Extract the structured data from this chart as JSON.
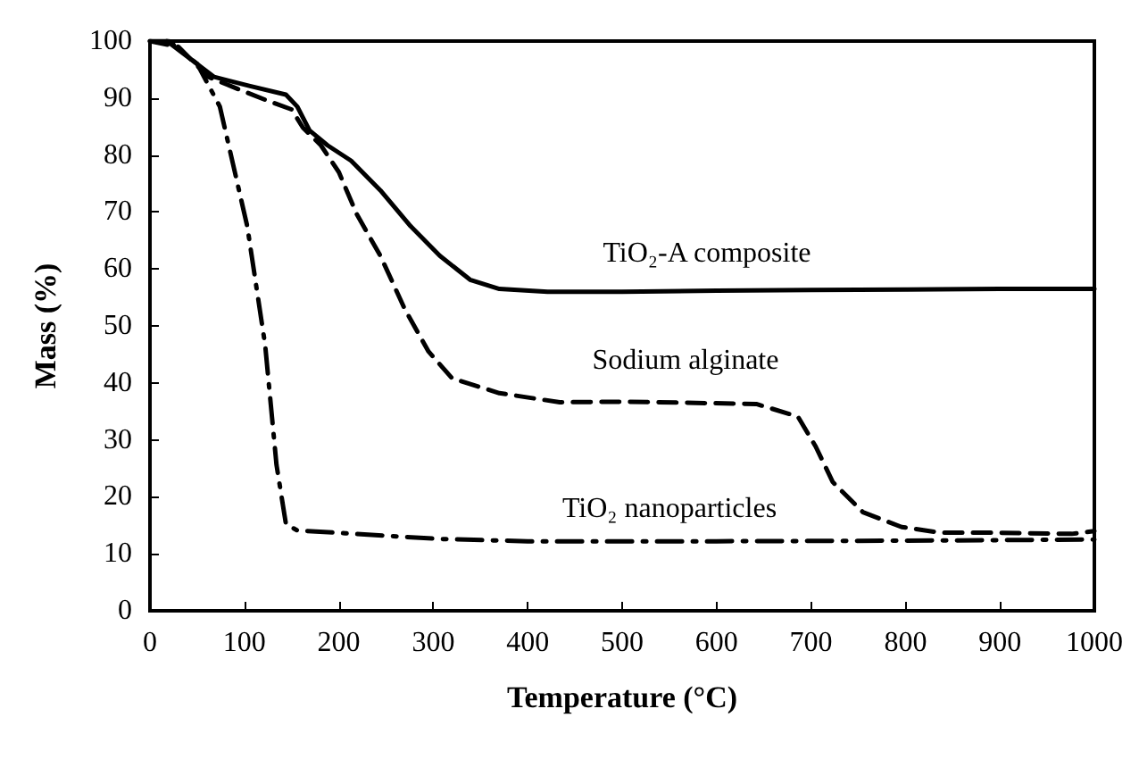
{
  "chart_data": {
    "type": "line",
    "xlabel": "Temperature (°C)",
    "ylabel": "Mass (%)",
    "xlim": [
      0,
      1000
    ],
    "xticks": [
      0,
      100,
      200,
      300,
      400,
      500,
      600,
      700,
      800,
      900,
      1000
    ],
    "ylim": [
      0,
      100
    ],
    "yticks": [
      0,
      10,
      20,
      30,
      40,
      50,
      60,
      70,
      80,
      90,
      100
    ],
    "grid": false,
    "marker": "none",
    "series": [
      {
        "name": "TiO₂-A composite",
        "color": "#000000",
        "line_style": "solid",
        "x": [
          18,
          68,
          106,
          144,
          156,
          169,
          188,
          213,
          244,
          276,
          307,
          339,
          370,
          421,
          500,
          600,
          700,
          800,
          900,
          1000
        ],
        "values": [
          100,
          93.7,
          92.1,
          90.6,
          88.5,
          84.3,
          81.7,
          79,
          73.8,
          67.5,
          62.3,
          58.1,
          56.5,
          56,
          56,
          56.2,
          56.3,
          56.4,
          56.5,
          56.5
        ]
      },
      {
        "name": "Sodium alginate",
        "color": "#000000",
        "line_style": "dashed",
        "x": [
          0,
          30,
          62,
          93,
          125,
          150,
          162,
          181,
          200,
          219,
          244,
          270,
          295,
          320,
          370,
          434,
          503,
          642,
          686,
          705,
          723,
          755,
          796,
          837,
          894,
          976,
          1000
        ],
        "values": [
          100,
          99,
          93.7,
          91.6,
          89.5,
          88,
          84.8,
          81.7,
          77,
          69.6,
          62.3,
          52.9,
          45.5,
          40.8,
          38.2,
          36.6,
          36.7,
          36.3,
          34.1,
          28.8,
          22.6,
          17.3,
          14.7,
          13.7,
          13.7,
          13.5,
          14
        ]
      },
      {
        "name": "TiO₂ nanoparticles",
        "color": "#000000",
        "line_style": "dashdot",
        "x": [
          0,
          20,
          50,
          74,
          103,
          122,
          134,
          144,
          156,
          207,
          307,
          400,
          600,
          800,
          900,
          1000
        ],
        "values": [
          100,
          100,
          96,
          88.5,
          67.5,
          46.6,
          25.6,
          15.2,
          14.1,
          13.6,
          12.6,
          12.2,
          12.2,
          12.3,
          12.4,
          12.5
        ]
      }
    ]
  }
}
